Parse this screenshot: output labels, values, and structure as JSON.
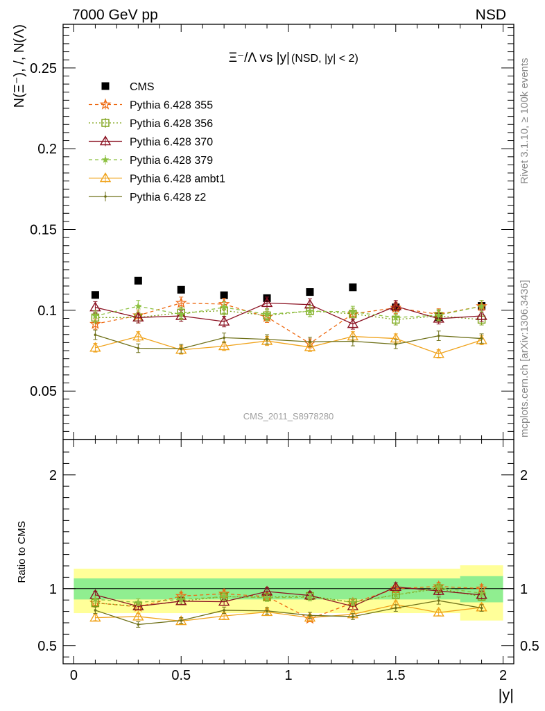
{
  "header": {
    "left": "7000 GeV pp",
    "right": "NSD"
  },
  "side_labels": {
    "rivet": "Rivet 3.1.10, ≥ 100k events",
    "mcplots": "mcplots.cern.ch [arXiv:1306.3436]"
  },
  "watermark": "CMS_2011_S8978280",
  "colors": {
    "CMS": "#000000",
    "355": "#ee6a12",
    "356": "#7aa012",
    "370": "#8a1020",
    "379": "#8cc040",
    "ambt1": "#f0a31c",
    "z2": "#6e7018",
    "band_outer": "#ffff99",
    "band_inner": "#90ee90"
  },
  "chart_data": [
    {
      "type": "scatter",
      "title": "Ξ⁻/Λ vs |y|",
      "title_suffix": "(NSD, |y| < 2)",
      "ylabel": "N(Ξ⁻), /, N(Λ)",
      "xlabel": "",
      "xlim": [
        -0.05,
        2.05
      ],
      "ylim": [
        0.02,
        0.277
      ],
      "y_ticks": [
        "0.05",
        "0.1",
        "0.15",
        "0.2",
        "0.25"
      ],
      "legend_position": "top-left",
      "x": [
        0.1,
        0.3,
        0.5,
        0.7,
        0.9,
        1.1,
        1.3,
        1.5,
        1.7,
        1.9
      ],
      "series": [
        {
          "name": "CMS",
          "marker": "square",
          "values": [
            0.1095,
            0.1183,
            0.1127,
            0.1093,
            0.1075,
            0.1113,
            0.1142,
            0.1018,
            0.0958,
            0.1027
          ]
        },
        {
          "name": "Pythia 6.428 355",
          "marker": "star",
          "dash": "dashed",
          "values": [
            0.0915,
            0.0968,
            0.1045,
            0.1038,
            0.0958,
            0.0795,
            0.0978,
            0.1015,
            0.0975,
            0.1025
          ]
        },
        {
          "name": "Pythia 6.428 356",
          "marker": "open-square",
          "dash": "dotted",
          "values": [
            0.0955,
            0.0955,
            0.0985,
            0.0998,
            0.0968,
            0.0995,
            0.0978,
            0.0942,
            0.0965,
            0.0942
          ]
        },
        {
          "name": "Pythia 6.428 370",
          "marker": "open-triangle",
          "dash": "solid",
          "values": [
            0.1018,
            0.0955,
            0.0965,
            0.093,
            0.1045,
            0.1035,
            0.0915,
            0.1025,
            0.0948,
            0.0965
          ]
        },
        {
          "name": "Pythia 6.428 379",
          "marker": "small-star",
          "dash": "dashed",
          "values": [
            0.0965,
            0.1025,
            0.0975,
            0.1018,
            0.0975,
            0.0995,
            0.099,
            0.0955,
            0.097,
            0.1025
          ]
        },
        {
          "name": "Pythia 6.428 ambt1",
          "marker": "open-triangle",
          "dash": "solid",
          "values": [
            0.0768,
            0.0838,
            0.0755,
            0.0778,
            0.081,
            0.0772,
            0.0838,
            0.0825,
            0.073,
            0.0815
          ]
        },
        {
          "name": "Pythia 6.428 z2",
          "marker": "dot",
          "dash": "solid",
          "values": [
            0.0848,
            0.0765,
            0.0762,
            0.083,
            0.082,
            0.0805,
            0.0808,
            0.079,
            0.0842,
            0.0825
          ]
        }
      ]
    },
    {
      "type": "scatter",
      "ylabel": "Ratio to CMS",
      "xlabel": "|y|",
      "xlim": [
        -0.05,
        2.05
      ],
      "ylim": [
        0.34,
        2.31
      ],
      "x_ticks": [
        "0",
        "0.5",
        "1",
        "1.5",
        "2"
      ],
      "y_ticks": [
        "0.5",
        "1",
        "2"
      ],
      "x": [
        0.1,
        0.3,
        0.5,
        0.7,
        0.9,
        1.1,
        1.3,
        1.5,
        1.7,
        1.9
      ],
      "reference_band": {
        "edges": [
          0.0,
          1.8,
          2.0
        ],
        "outer": [
          [
            0.785,
            1.175
          ],
          [
            0.72,
            1.205
          ]
        ],
        "inner": [
          [
            0.905,
            1.09
          ],
          [
            0.88,
            1.11
          ]
        ]
      },
      "series": [
        {
          "name": "Pythia 6.428 355",
          "values": [
            0.875,
            0.84,
            0.935,
            0.955,
            0.93,
            0.735,
            0.875,
            1.0,
            1.02,
            1.0
          ]
        },
        {
          "name": "Pythia 6.428 356",
          "values": [
            0.875,
            0.845,
            0.89,
            0.93,
            0.925,
            0.935,
            0.88,
            0.945,
            1.0,
            0.93
          ]
        },
        {
          "name": "Pythia 6.428 370",
          "values": [
            0.945,
            0.845,
            0.89,
            0.885,
            0.975,
            0.94,
            0.845,
            1.015,
            0.98,
            0.945
          ]
        },
        {
          "name": "Pythia 6.428 379",
          "values": [
            0.905,
            0.88,
            0.905,
            0.93,
            0.92,
            0.925,
            0.88,
            0.945,
            1.01,
            0.96
          ]
        },
        {
          "name": "Pythia 6.428 ambt1",
          "values": [
            0.745,
            0.755,
            0.715,
            0.76,
            0.795,
            0.745,
            0.775,
            0.86,
            0.79,
            0.835
          ]
        },
        {
          "name": "Pythia 6.428 z2",
          "values": [
            0.81,
            0.685,
            0.72,
            0.81,
            0.805,
            0.765,
            0.755,
            0.83,
            0.895,
            0.83
          ]
        }
      ]
    }
  ]
}
